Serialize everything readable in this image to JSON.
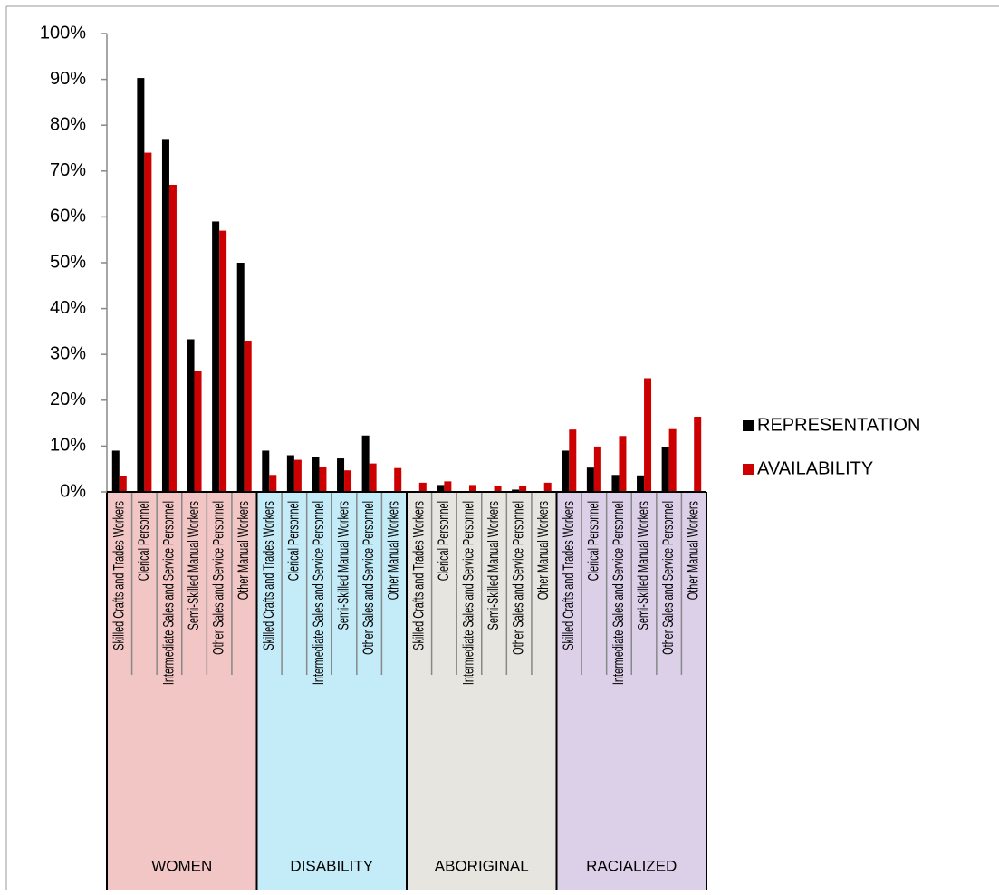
{
  "chart_data": {
    "type": "grouped-bar",
    "category_groups": [
      {
        "name": "WOMEN",
        "color": "#f2c6c4",
        "categories": [
          "Skilled Crafts and Trades Workers",
          "Clerical Personnel",
          "Intermediate Sales and Service Personnel",
          "Semi-Skilled Manual Workers",
          "Other Sales and Service Personnel",
          "Other Manual Workers"
        ]
      },
      {
        "name": "DISABILITY",
        "color": "#c4ecf8",
        "categories": [
          "Skilled Crafts and Trades Workers",
          "Clerical Personnel",
          "Intermediate Sales and Service Personnel",
          "Semi-Skilled Manual Workers",
          "Other Sales and Service Personnel",
          "Other Manual Workers"
        ]
      },
      {
        "name": "ABORIGINAL",
        "color": "#e6e5df",
        "categories": [
          "Skilled Crafts and Trades Workers",
          "Clerical Personnel",
          "Intermediate Sales and Service Personnel",
          "Semi-Skilled Manual Workers",
          "Other Sales and Service Personnel",
          "Other Manual Workers"
        ]
      },
      {
        "name": "RACIALIZED",
        "color": "#dccfe8",
        "categories": [
          "Skilled Crafts and Trades Workers",
          "Clerical Personnel",
          "Intermediate Sales and Service Personnel",
          "Semi-Skilled Manual Workers",
          "Other Sales and Service Personnel",
          "Other Manual Workers"
        ]
      }
    ],
    "series": [
      {
        "name": "REPRESENTATION",
        "color": "#000000",
        "values": [
          9,
          90.3,
          77,
          33.3,
          59,
          50,
          9,
          8,
          7.7,
          7.3,
          12.3,
          0,
          0,
          1.5,
          0,
          0,
          0.5,
          0,
          9,
          5.3,
          3.7,
          3.6,
          9.7,
          0
        ]
      },
      {
        "name": "AVAILABILITY",
        "color": "#cc0000",
        "values": [
          3.5,
          74,
          67,
          26.3,
          57,
          33,
          3.7,
          7,
          5.5,
          4.7,
          6.2,
          5.2,
          2,
          2.3,
          1.5,
          1.2,
          1.3,
          2,
          13.6,
          9.9,
          12.2,
          24.8,
          13.7,
          16.4
        ]
      }
    ],
    "ylim": [
      0,
      100
    ],
    "yticks": [
      {
        "value": 0,
        "label": "0%"
      },
      {
        "value": 10,
        "label": "10%"
      },
      {
        "value": 20,
        "label": "20%"
      },
      {
        "value": 30,
        "label": "30%"
      },
      {
        "value": 40,
        "label": "40%"
      },
      {
        "value": 50,
        "label": "50%"
      },
      {
        "value": 60,
        "label": "60%"
      },
      {
        "value": 70,
        "label": "70%"
      },
      {
        "value": 80,
        "label": "80%"
      },
      {
        "value": 90,
        "label": "90%"
      },
      {
        "value": 100,
        "label": "100%"
      }
    ],
    "legend": "right"
  }
}
